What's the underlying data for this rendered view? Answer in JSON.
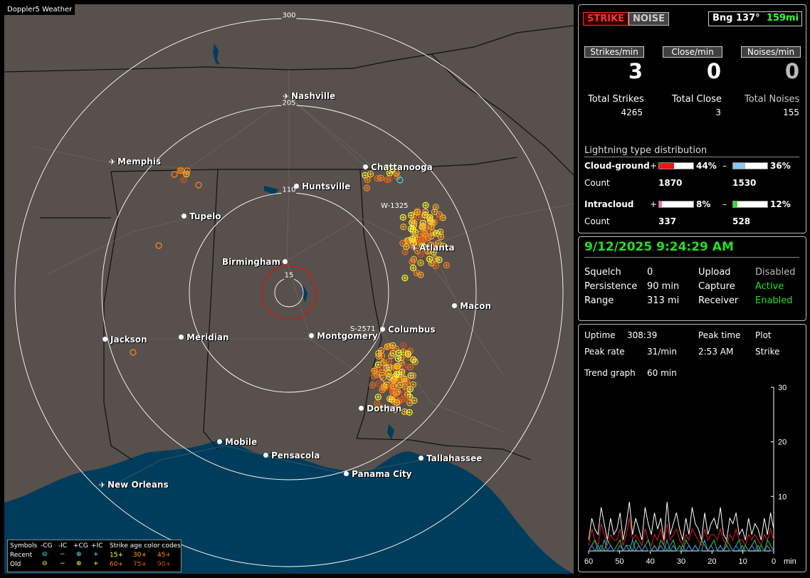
{
  "app_title": "Doppler5 Weather",
  "map": {
    "rings": [
      "300",
      "205",
      "110",
      "15"
    ],
    "track_labels": [
      "W-1325",
      "S-2571"
    ],
    "cities": [
      {
        "name": "Nashville",
        "icon": "airport"
      },
      {
        "name": "Memphis",
        "icon": "airport"
      },
      {
        "name": "Chattanooga",
        "icon": "dot"
      },
      {
        "name": "Huntsville",
        "icon": "dot"
      },
      {
        "name": "Tupelo",
        "icon": "dot"
      },
      {
        "name": "Atlanta",
        "icon": "airport"
      },
      {
        "name": "Birmingham",
        "icon": "dot"
      },
      {
        "name": "Macon",
        "icon": "dot"
      },
      {
        "name": "Columbus",
        "icon": "dot"
      },
      {
        "name": "Jackson",
        "icon": "dot"
      },
      {
        "name": "Meridian",
        "icon": "dot"
      },
      {
        "name": "Montgomery",
        "icon": "dot"
      },
      {
        "name": "Dothan",
        "icon": "dot"
      },
      {
        "name": "Mobile",
        "icon": "dot"
      },
      {
        "name": "Pensacola",
        "icon": "dot"
      },
      {
        "name": "Tallahassee",
        "icon": "dot"
      },
      {
        "name": "Panama City",
        "icon": "dot"
      },
      {
        "name": "New Orleans",
        "icon": "airport"
      }
    ]
  },
  "legend": {
    "symbols_label": "Symbols",
    "recent_label": "Recent",
    "old_label": "Old",
    "col_ncg": "-CG",
    "col_nic": "-IC",
    "col_pcg": "+CG",
    "col_pic": "+IC",
    "age_title": "Strike age color codes",
    "recent_ages": [
      "15+",
      "30+",
      "45+"
    ],
    "old_ages": [
      "60+",
      "75+",
      "90+"
    ],
    "age_colors": [
      "#ffff33",
      "#ffb030",
      "#ff8a1e",
      "#ff7a10",
      "#e8601a",
      "#d04d20"
    ]
  },
  "top_panel": {
    "strike_btn": "STRIKE",
    "noise_btn": "NOISE",
    "bearing": "Bng 137°",
    "distance": "159mi",
    "rate_headers": [
      "Strikes/min",
      "Close/min",
      "Noises/min"
    ],
    "rate_values": [
      "3",
      "0",
      "0"
    ],
    "total_labels": [
      "Total Strikes",
      "Total Close",
      "Total Noises"
    ],
    "total_values": [
      "4265",
      "3",
      "155"
    ],
    "dist_title": "Lightning type distribution",
    "cg_label": "Cloud-ground",
    "ic_label": "Intracloud",
    "count_label": "Count",
    "plus": "+",
    "minus": "–",
    "cg_pos_pct": "44%",
    "cg_neg_pct": "36%",
    "ic_pos_pct": "8%",
    "ic_neg_pct": "12%",
    "cg_pos_count": "1870",
    "cg_neg_count": "1530",
    "ic_pos_count": "337",
    "ic_neg_count": "528",
    "bar_fractions": {
      "cg_pos": 0.44,
      "cg_neg": 0.36,
      "ic_pos": 0.08,
      "ic_neg": 0.12
    },
    "bar_colors": {
      "cg_pos": "#ff1010",
      "cg_neg": "#88c8f0",
      "ic_pos": "#f070b0",
      "ic_neg": "#30e030"
    }
  },
  "status_panel": {
    "datetime": "9/12/2025 9:24:29 AM",
    "rows": [
      {
        "label": "Squelch",
        "value": "0",
        "label2": "Upload",
        "value2": "Disabled",
        "color2": "#bbbbbb"
      },
      {
        "label": "Persistence",
        "value": "90 min",
        "label2": "Capture",
        "value2": "Active",
        "color2": "#22e022"
      },
      {
        "label": "Range",
        "value": "313 mi",
        "label2": "Receiver",
        "value2": "Enabled",
        "color2": "#22e022"
      }
    ]
  },
  "trend_panel": {
    "uptime_label": "Uptime",
    "uptime": "308:39",
    "peak_time_label": "Peak time",
    "peak_time": "2:53 AM",
    "plot_label": "Plot",
    "plot_value": "Strike",
    "peak_rate_label": "Peak rate",
    "peak_rate": "31/min",
    "trend_label": "Trend graph",
    "trend_value": "60 min",
    "y_ticks": [
      "30",
      "20",
      "10"
    ],
    "x_ticks": [
      "60",
      "50",
      "40",
      "30",
      "20",
      "10",
      "0"
    ],
    "x_unit": "min"
  },
  "chart_data": {
    "type": "line",
    "title": "",
    "xlabel": "min",
    "ylabel": "",
    "xlim": [
      60,
      0
    ],
    "ylim": [
      0,
      30
    ],
    "series": [
      {
        "color": "#ffffff",
        "values": [
          2,
          6,
          4,
          3,
          8,
          5,
          2,
          6,
          3,
          4,
          7,
          2,
          5,
          9,
          3,
          6,
          4,
          2,
          8,
          5,
          3,
          7,
          4,
          6,
          2,
          9,
          3,
          5,
          7,
          4,
          2,
          6,
          3,
          8,
          5,
          4,
          2,
          7,
          3,
          5,
          6,
          4,
          8,
          3,
          2,
          6,
          5,
          7,
          3,
          4,
          2,
          6,
          3,
          5,
          4,
          2,
          6,
          3,
          7,
          4
        ]
      },
      {
        "color": "#e02020",
        "values": [
          1,
          4,
          2,
          1,
          5,
          3,
          1,
          3,
          2,
          2,
          4,
          1,
          3,
          6,
          2,
          3,
          2,
          1,
          4,
          2,
          1,
          3,
          2,
          4,
          1,
          5,
          2,
          3,
          4,
          2,
          1,
          3,
          2,
          4,
          3,
          2,
          1,
          4,
          2,
          3,
          3,
          2,
          4,
          2,
          1,
          3,
          2,
          4,
          2,
          2,
          1,
          3,
          2,
          3,
          2,
          1,
          3,
          2,
          4,
          2
        ]
      },
      {
        "color": "#30d030",
        "values": [
          0,
          1,
          2,
          0,
          1,
          0,
          2,
          1,
          0,
          1,
          2,
          0,
          1,
          1,
          0,
          2,
          1,
          0,
          1,
          2,
          0,
          1,
          0,
          2,
          1,
          0,
          1,
          2,
          0,
          1,
          0,
          2,
          1,
          0,
          1,
          0,
          2,
          1,
          0,
          1,
          2,
          0,
          1,
          0,
          2,
          1,
          0,
          1,
          2,
          0,
          1,
          0,
          1,
          2,
          0,
          1,
          0,
          2,
          1,
          0
        ]
      },
      {
        "color": "#4a90ff",
        "values": [
          0,
          1,
          0,
          1,
          0,
          2,
          0,
          1,
          0,
          0,
          1,
          0,
          1,
          0,
          2,
          0,
          1,
          0,
          1,
          0,
          0,
          1,
          0,
          1,
          0,
          2,
          0,
          1,
          0,
          0,
          1,
          0,
          1,
          0,
          1,
          0,
          0,
          2,
          0,
          1,
          0,
          0,
          1,
          0,
          1,
          0,
          0,
          1,
          0,
          1,
          0,
          0,
          1,
          0,
          1,
          0,
          0,
          1,
          0,
          0
        ]
      }
    ]
  }
}
